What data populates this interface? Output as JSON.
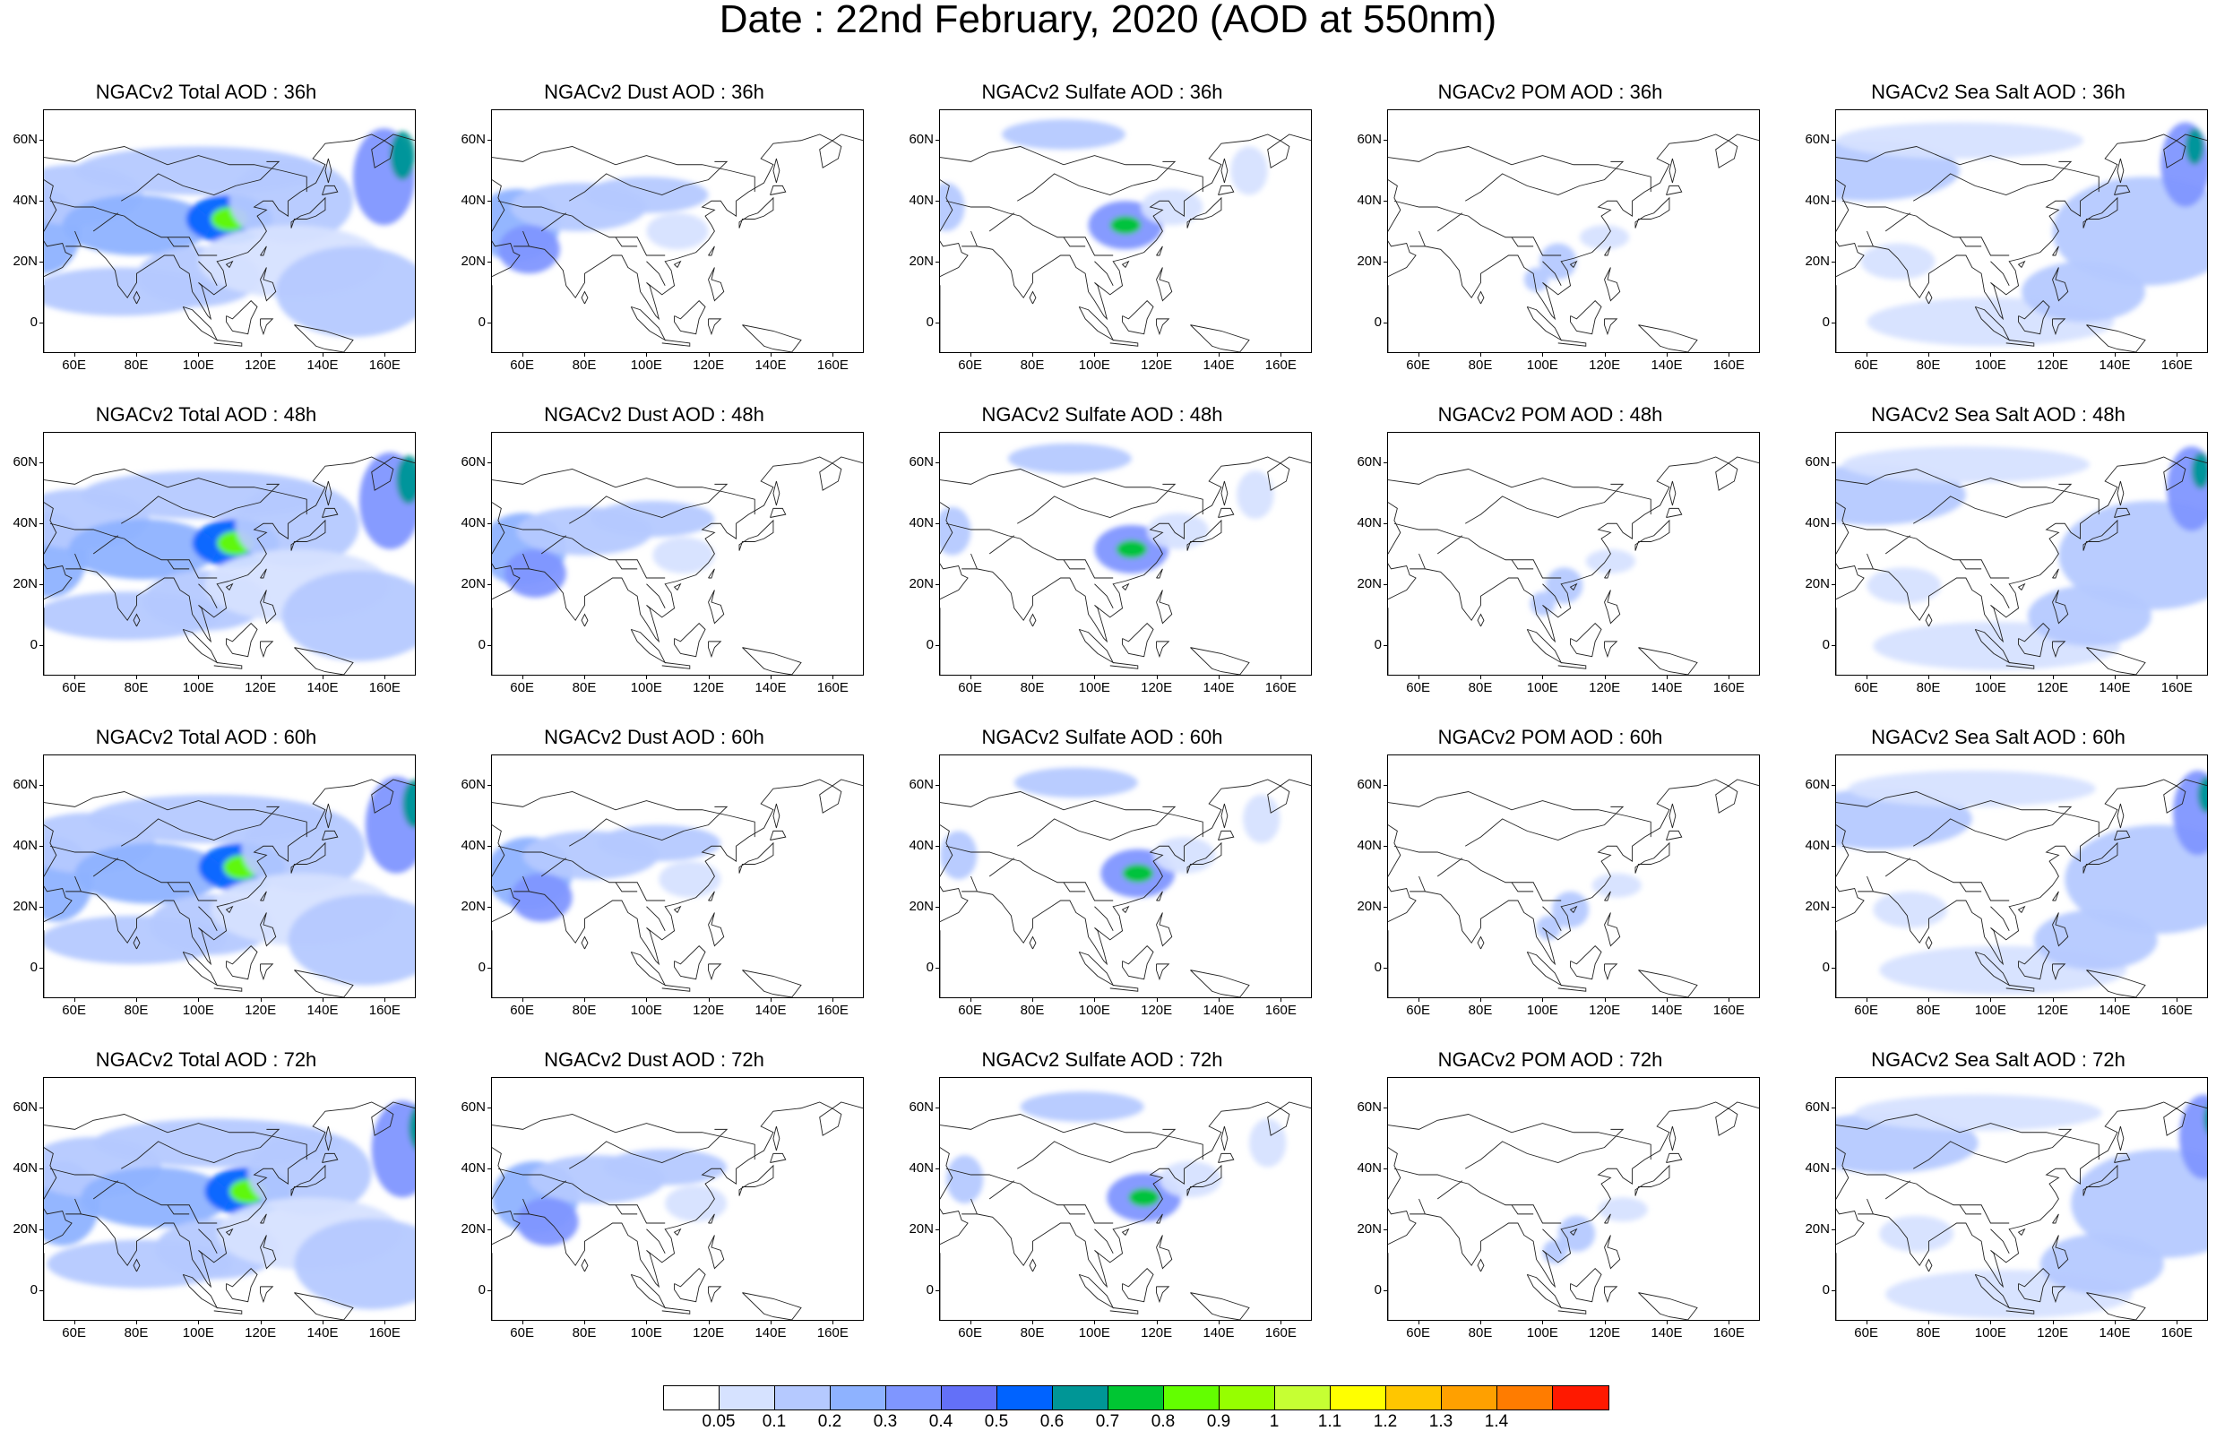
{
  "title": "Date : 22nd February, 2020 (AOD at 550nm)",
  "axes": {
    "lat_ticks": [
      "60N",
      "40N",
      "20N",
      "0"
    ],
    "lat_values": [
      60,
      40,
      20,
      0
    ],
    "lon_ticks": [
      "60E",
      "80E",
      "100E",
      "120E",
      "140E",
      "160E"
    ],
    "lon_values": [
      60,
      80,
      100,
      120,
      140,
      160
    ],
    "lon_range": [
      50,
      170
    ],
    "lat_range": [
      -10,
      70
    ]
  },
  "colorbar": {
    "labels": [
      "0.05",
      "0.1",
      "0.2",
      "0.3",
      "0.4",
      "0.5",
      "0.6",
      "0.7",
      "0.8",
      "0.9",
      "1",
      "1.1",
      "1.2",
      "1.3",
      "1.4"
    ],
    "colors": [
      "#ffffff",
      "#d6e2ff",
      "#b5c9ff",
      "#8eb2ff",
      "#7f96ff",
      "#6370f8",
      "#0063ff",
      "#009696",
      "#00c633",
      "#63ff00",
      "#96ff00",
      "#c6ff33",
      "#ffff00",
      "#ffc600",
      "#ffa000",
      "#ff7c00",
      "#ff1900"
    ]
  },
  "panels": [
    {
      "title": "NGACv2 Total AOD : 36h",
      "variable": "Total AOD",
      "hour": "36h",
      "intensity": "high"
    },
    {
      "title": "NGACv2 Dust AOD : 36h",
      "variable": "Dust AOD",
      "hour": "36h",
      "intensity": "medium"
    },
    {
      "title": "NGACv2 Sulfate AOD : 36h",
      "variable": "Sulfate AOD",
      "hour": "36h",
      "intensity": "medium"
    },
    {
      "title": "NGACv2 POM AOD : 36h",
      "variable": "POM AOD",
      "hour": "36h",
      "intensity": "low"
    },
    {
      "title": "NGACv2 Sea Salt AOD : 36h",
      "variable": "Sea Salt AOD",
      "hour": "36h",
      "intensity": "high"
    },
    {
      "title": "NGACv2 Total AOD : 48h",
      "variable": "Total AOD",
      "hour": "48h",
      "intensity": "high"
    },
    {
      "title": "NGACv2 Dust AOD : 48h",
      "variable": "Dust AOD",
      "hour": "48h",
      "intensity": "medium"
    },
    {
      "title": "NGACv2 Sulfate AOD : 48h",
      "variable": "Sulfate AOD",
      "hour": "48h",
      "intensity": "medium"
    },
    {
      "title": "NGACv2 POM AOD : 48h",
      "variable": "POM AOD",
      "hour": "48h",
      "intensity": "low"
    },
    {
      "title": "NGACv2 Sea Salt AOD : 48h",
      "variable": "Sea Salt AOD",
      "hour": "48h",
      "intensity": "high"
    },
    {
      "title": "NGACv2 Total AOD : 60h",
      "variable": "Total AOD",
      "hour": "60h",
      "intensity": "high"
    },
    {
      "title": "NGACv2 Dust AOD : 60h",
      "variable": "Dust AOD",
      "hour": "60h",
      "intensity": "medium"
    },
    {
      "title": "NGACv2 Sulfate AOD : 60h",
      "variable": "Sulfate AOD",
      "hour": "60h",
      "intensity": "medium"
    },
    {
      "title": "NGACv2 POM AOD : 60h",
      "variable": "POM AOD",
      "hour": "60h",
      "intensity": "low"
    },
    {
      "title": "NGACv2 Sea Salt AOD : 60h",
      "variable": "Sea Salt AOD",
      "hour": "60h",
      "intensity": "high"
    },
    {
      "title": "NGACv2 Total AOD : 72h",
      "variable": "Total AOD",
      "hour": "72h",
      "intensity": "high"
    },
    {
      "title": "NGACv2 Dust AOD : 72h",
      "variable": "Dust AOD",
      "hour": "72h",
      "intensity": "medium"
    },
    {
      "title": "NGACv2 Sulfate AOD : 72h",
      "variable": "Sulfate AOD",
      "hour": "72h",
      "intensity": "medium"
    },
    {
      "title": "NGACv2 POM AOD : 72h",
      "variable": "POM AOD",
      "hour": "72h",
      "intensity": "low"
    },
    {
      "title": "NGACv2 Sea Salt  AOD : 72h",
      "variable": "Sea Salt AOD",
      "hour": "72h",
      "intensity": "high"
    }
  ]
}
